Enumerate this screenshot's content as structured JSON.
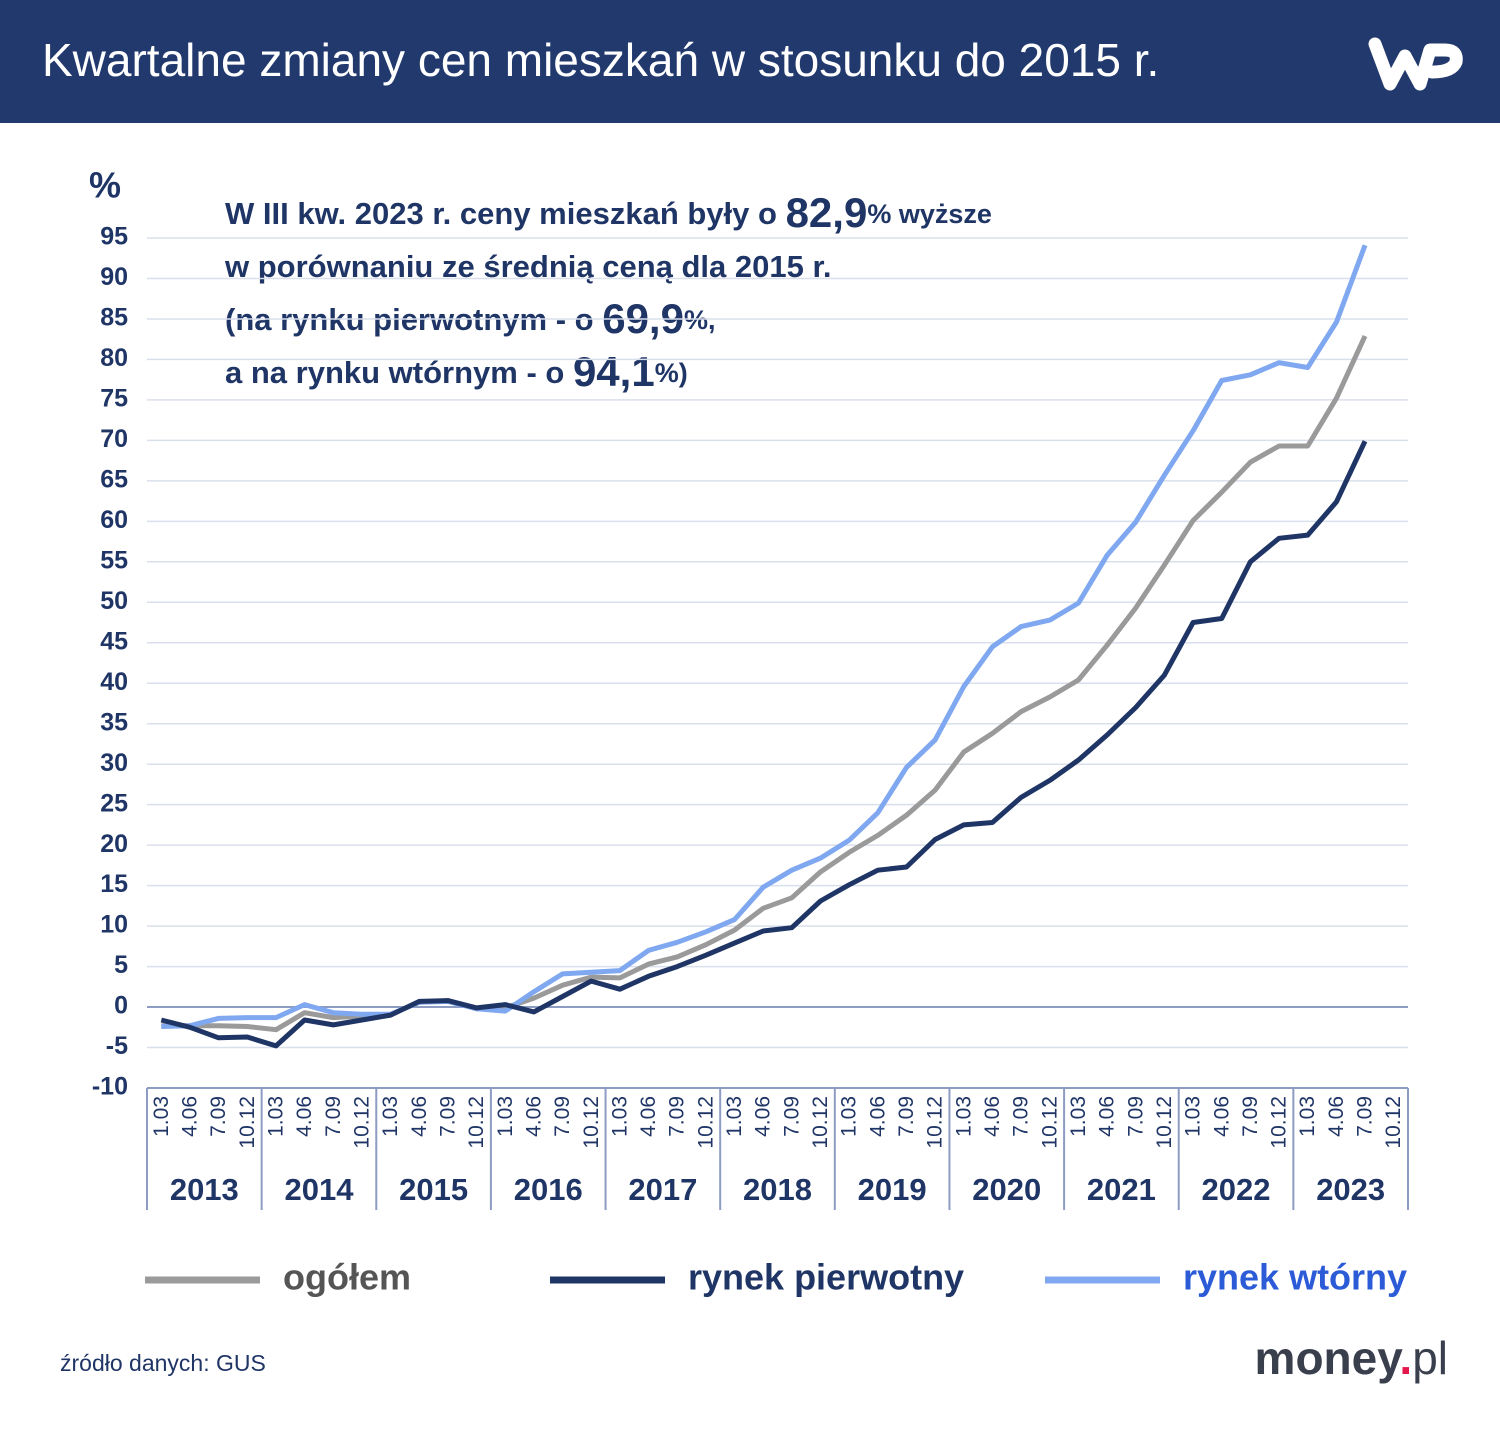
{
  "chart_data": {
    "type": "line",
    "title": "Kwartalne zmiany cen mieszkań w stosunku do 2015 r.",
    "y_unit": "%",
    "annotation": [
      [
        "W III kw. 2023 r. ceny mieszkań były o ",
        "82,9",
        "% wyższe"
      ],
      [
        "w porównaniu ze średnią ceną dla 2015 r."
      ],
      [
        "(na rynku pierwotnym - o ",
        "69,9",
        "%,"
      ],
      [
        "a na rynku wtórnym - o ",
        "94,1",
        "%)"
      ]
    ],
    "categories": [
      "1.03",
      "4.06",
      "7.09",
      "10.12",
      "1.03",
      "4.06",
      "7.09",
      "10.12",
      "1.03",
      "4.06",
      "7.09",
      "10.12",
      "1.03",
      "4.06",
      "7.09",
      "10.12",
      "1.03",
      "4.06",
      "7.09",
      "10.12",
      "1.03",
      "4.06",
      "7.09",
      "10.12",
      "1.03",
      "4.06",
      "7.09",
      "10.12",
      "1.03",
      "4.06",
      "7.09",
      "10.12",
      "1.03",
      "4.06",
      "7.09",
      "10.12",
      "1.03",
      "4.06",
      "7.09",
      "10.12",
      "1.03",
      "4.06",
      "7.09",
      "10.12"
    ],
    "years": [
      "2013",
      "2014",
      "2015",
      "2016",
      "2017",
      "2018",
      "2019",
      "2020",
      "2021",
      "2022",
      "2023"
    ],
    "series": [
      {
        "name": "ogółem",
        "color": "#9a9a9a",
        "values": [
          -2.3,
          -2.3,
          -2.3,
          -2.4,
          -2.8,
          -0.7,
          -1.3,
          -1.1,
          -0.9,
          0.6,
          0.8,
          -0.2,
          -0.1,
          1.1,
          2.7,
          3.7,
          3.6,
          5.3,
          6.2,
          7.7,
          9.5,
          12.2,
          13.5,
          16.7,
          19.1,
          21.2,
          23.7,
          26.8,
          31.5,
          33.8,
          36.5,
          38.3,
          40.4,
          44.7,
          49.3,
          54.6,
          60.1,
          63.6,
          67.3,
          69.3,
          69.3,
          75.2,
          82.9,
          null
        ]
      },
      {
        "name": "rynek pierwotny",
        "color": "#1f3566",
        "values": [
          -1.6,
          -2.5,
          -3.8,
          -3.7,
          -4.8,
          -1.6,
          -2.2,
          -1.6,
          -1.0,
          0.7,
          0.8,
          -0.1,
          0.3,
          -0.6,
          1.3,
          3.2,
          2.2,
          3.8,
          5.0,
          6.4,
          7.9,
          9.4,
          9.8,
          13.1,
          15.1,
          16.9,
          17.3,
          20.7,
          22.5,
          22.8,
          25.9,
          28.0,
          30.5,
          33.6,
          37.0,
          41.0,
          47.5,
          48.0,
          55.0,
          57.9,
          58.3,
          62.4,
          69.9,
          null
        ]
      },
      {
        "name": "rynek wtórny",
        "color": "#7fa8f0",
        "values": [
          -2.4,
          -2.3,
          -1.4,
          -1.3,
          -1.3,
          0.3,
          -0.7,
          -0.9,
          -0.9,
          0.6,
          0.7,
          -0.2,
          -0.5,
          1.9,
          4.1,
          4.3,
          4.5,
          7.0,
          8.0,
          9.3,
          10.8,
          14.8,
          16.9,
          18.4,
          20.6,
          24.0,
          29.6,
          33.0,
          39.6,
          44.5,
          47.0,
          47.8,
          49.9,
          55.8,
          59.9,
          65.7,
          71.2,
          77.4,
          78.1,
          79.6,
          79.0,
          84.6,
          94.1,
          null
        ]
      }
    ],
    "ylim": [
      -10,
      95
    ],
    "yticks": [
      -10,
      -5,
      0,
      5,
      10,
      15,
      20,
      25,
      30,
      35,
      40,
      45,
      50,
      55,
      60,
      65,
      70,
      75,
      80,
      85,
      90,
      95
    ],
    "grid": true,
    "legend": "bottom"
  },
  "source": "źródło danych: GUS",
  "brand": [
    "money",
    ".",
    "pl"
  ]
}
